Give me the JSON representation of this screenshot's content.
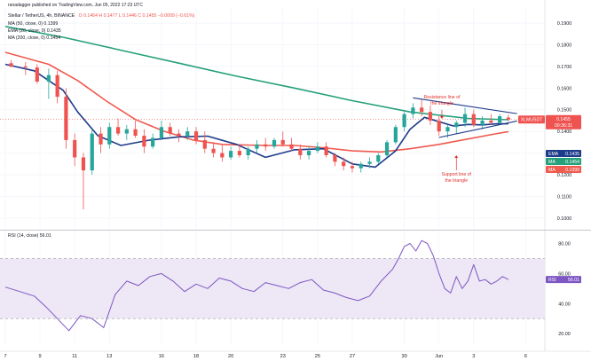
{
  "header": {
    "publisher": "ranadagger published on TradingView.com, Jun 05, 2022 17:23 UTC",
    "symbol_line": "Stellar / TetherUS, 4h, BINANCE",
    "ohlc": "O 0.1464 H 0.1477 L 0.1446 C 0.1455 −0.0009 (−0.61%)",
    "ema50": "MA (50, close, 0) 0.1399",
    "ema20": "EMA (20, close, 0) 0.1435",
    "ma200": "MA (200, close, 0) 0.1454",
    "rsi_legend": "RSI (14, close) 56.01"
  },
  "colors": {
    "up": "#26a69a",
    "down": "#ef5350",
    "ma200": "#26a07a",
    "ema20": "#1e3a8a",
    "ma50": "#f05a4f",
    "rsi": "#7e57c2",
    "rsi_band": "#ede7f6",
    "annotation": "#e0302b",
    "trendline": "#1e3a8a",
    "price_tag": "#ef5350"
  },
  "price_axis": {
    "ticks": [
      "0.1900",
      "0.1800",
      "0.1700",
      "0.1600",
      "0.1500",
      "0.1400",
      "0.1300",
      "0.1200",
      "0.1100",
      "0.1000"
    ]
  },
  "rsi_axis": {
    "ticks": [
      "80.00",
      "60.00",
      "40.00",
      "20.00"
    ]
  },
  "tags": {
    "symbol": "XLMUSDT",
    "price": "0.1455",
    "timer": "00:36:31",
    "ema20": "0.1435",
    "ma200": "0.1454",
    "ma50": "0.1399",
    "ema20_label": "EMA",
    "ma200_label": "MA",
    "ma50_label": "MA",
    "rsi_label": "RSI",
    "rsi_value": "56.01"
  },
  "annotations": {
    "resistance_1": "Resistance line of",
    "resistance_2": "the triangle",
    "support_1": "Support line of",
    "support_2": "the triangle"
  },
  "chart_data": {
    "type": "line",
    "title": "Stellar / TetherUS, 4h, BINANCE",
    "x_ticks": [
      "7",
      "9",
      "11",
      "13",
      "16",
      "18",
      "20",
      "23",
      "25",
      "27",
      "30",
      "Jun",
      "3",
      "6"
    ],
    "x_tick_candles": [
      0,
      12,
      24,
      36,
      54,
      66,
      78,
      96,
      108,
      120,
      138,
      150,
      162,
      180
    ],
    "ylim": [
      0.095,
      0.197
    ],
    "rsi_ylim": [
      13,
      88
    ],
    "grid": true,
    "series": [
      {
        "name": "MA (200, close, 0)",
        "x": [
          0,
          20,
          40,
          60,
          80,
          100,
          120,
          140,
          160,
          174
        ],
        "y": [
          0.1885,
          0.1835,
          0.1775,
          0.1715,
          0.1655,
          0.16,
          0.1542,
          0.149,
          0.146,
          0.1454
        ]
      },
      {
        "name": "EMA (20, close, 0)",
        "x": [
          0,
          10,
          20,
          25,
          32,
          40,
          50,
          60,
          70,
          80,
          90,
          100,
          110,
          120,
          128,
          135,
          140,
          145,
          150,
          155,
          160,
          165,
          170,
          174
        ],
        "y": [
          0.171,
          0.168,
          0.159,
          0.149,
          0.138,
          0.1335,
          0.136,
          0.1375,
          0.1378,
          0.134,
          0.128,
          0.1315,
          0.132,
          0.125,
          0.1235,
          0.131,
          0.141,
          0.1465,
          0.1445,
          0.1425,
          0.1432,
          0.143,
          0.1435,
          0.1435
        ]
      },
      {
        "name": "MA (50, close, 0)",
        "x": [
          0,
          15,
          25,
          35,
          45,
          55,
          65,
          75,
          90,
          100,
          110,
          120,
          130,
          140,
          150,
          160,
          170,
          174
        ],
        "y": [
          0.1765,
          0.171,
          0.1635,
          0.154,
          0.1455,
          0.14,
          0.136,
          0.134,
          0.1335,
          0.1335,
          0.1325,
          0.131,
          0.1305,
          0.132,
          0.134,
          0.1365,
          0.139,
          0.1399
        ]
      },
      {
        "name": "RSI (14, close)",
        "x": [
          0,
          5,
          10,
          14,
          18,
          22,
          26,
          30,
          34,
          38,
          42,
          46,
          50,
          54,
          58,
          62,
          66,
          70,
          74,
          78,
          82,
          86,
          90,
          94,
          98,
          102,
          106,
          110,
          114,
          118,
          122,
          126,
          130,
          134,
          136,
          138,
          140,
          142,
          144,
          146,
          148,
          150,
          152,
          154,
          156,
          158,
          160,
          162,
          164,
          166,
          168,
          170,
          172,
          174
        ],
        "y": [
          51,
          48,
          45,
          38,
          30,
          22,
          32,
          30,
          24,
          46,
          55,
          52,
          58,
          60,
          55,
          48,
          53,
          50,
          57,
          55,
          50,
          48,
          54,
          52,
          50,
          54,
          56,
          49,
          47,
          44,
          42,
          45,
          55,
          63,
          70,
          78,
          80,
          75,
          82,
          80,
          72,
          60,
          50,
          47,
          58,
          50,
          55,
          66,
          55,
          56,
          53,
          55,
          58,
          56.01
        ]
      }
    ],
    "candles": [
      {
        "t": 2,
        "o": 0.1715,
        "h": 0.173,
        "l": 0.1695,
        "c": 0.17
      },
      {
        "t": 7,
        "o": 0.17,
        "h": 0.172,
        "l": 0.166,
        "c": 0.1695
      },
      {
        "t": 11,
        "o": 0.1695,
        "h": 0.171,
        "l": 0.162,
        "c": 0.163
      },
      {
        "t": 15,
        "o": 0.163,
        "h": 0.169,
        "l": 0.155,
        "c": 0.166
      },
      {
        "t": 18,
        "o": 0.166,
        "h": 0.168,
        "l": 0.153,
        "c": 0.156
      },
      {
        "t": 21,
        "o": 0.156,
        "h": 0.16,
        "l": 0.132,
        "c": 0.136
      },
      {
        "t": 24,
        "o": 0.136,
        "h": 0.139,
        "l": 0.124,
        "c": 0.128
      },
      {
        "t": 27,
        "o": 0.128,
        "h": 0.13,
        "l": 0.104,
        "c": 0.122
      },
      {
        "t": 30,
        "o": 0.122,
        "h": 0.141,
        "l": 0.12,
        "c": 0.139
      },
      {
        "t": 33,
        "o": 0.139,
        "h": 0.142,
        "l": 0.13,
        "c": 0.134
      },
      {
        "t": 36,
        "o": 0.134,
        "h": 0.144,
        "l": 0.132,
        "c": 0.142
      },
      {
        "t": 39,
        "o": 0.142,
        "h": 0.146,
        "l": 0.138,
        "c": 0.139
      },
      {
        "t": 42,
        "o": 0.139,
        "h": 0.143,
        "l": 0.136,
        "c": 0.141
      },
      {
        "t": 45,
        "o": 0.141,
        "h": 0.145,
        "l": 0.137,
        "c": 0.138
      },
      {
        "t": 48,
        "o": 0.138,
        "h": 0.141,
        "l": 0.13,
        "c": 0.133
      },
      {
        "t": 51,
        "o": 0.133,
        "h": 0.139,
        "l": 0.132,
        "c": 0.137
      },
      {
        "t": 54,
        "o": 0.137,
        "h": 0.145,
        "l": 0.136,
        "c": 0.142
      },
      {
        "t": 57,
        "o": 0.142,
        "h": 0.144,
        "l": 0.138,
        "c": 0.139
      },
      {
        "t": 60,
        "o": 0.139,
        "h": 0.141,
        "l": 0.135,
        "c": 0.138
      },
      {
        "t": 63,
        "o": 0.138,
        "h": 0.142,
        "l": 0.136,
        "c": 0.14
      },
      {
        "t": 66,
        "o": 0.14,
        "h": 0.142,
        "l": 0.134,
        "c": 0.136
      },
      {
        "t": 69,
        "o": 0.136,
        "h": 0.14,
        "l": 0.13,
        "c": 0.132
      },
      {
        "t": 72,
        "o": 0.132,
        "h": 0.135,
        "l": 0.128,
        "c": 0.13
      },
      {
        "t": 75,
        "o": 0.13,
        "h": 0.134,
        "l": 0.126,
        "c": 0.128
      },
      {
        "t": 78,
        "o": 0.128,
        "h": 0.133,
        "l": 0.127,
        "c": 0.131
      },
      {
        "t": 81,
        "o": 0.131,
        "h": 0.134,
        "l": 0.128,
        "c": 0.129
      },
      {
        "t": 84,
        "o": 0.129,
        "h": 0.133,
        "l": 0.127,
        "c": 0.132
      },
      {
        "t": 87,
        "o": 0.132,
        "h": 0.136,
        "l": 0.13,
        "c": 0.134
      },
      {
        "t": 90,
        "o": 0.134,
        "h": 0.137,
        "l": 0.131,
        "c": 0.133
      },
      {
        "t": 93,
        "o": 0.133,
        "h": 0.137,
        "l": 0.132,
        "c": 0.136
      },
      {
        "t": 96,
        "o": 0.136,
        "h": 0.14,
        "l": 0.133,
        "c": 0.134
      },
      {
        "t": 99,
        "o": 0.134,
        "h": 0.137,
        "l": 0.131,
        "c": 0.132
      },
      {
        "t": 102,
        "o": 0.132,
        "h": 0.134,
        "l": 0.127,
        "c": 0.129
      },
      {
        "t": 105,
        "o": 0.129,
        "h": 0.133,
        "l": 0.127,
        "c": 0.131
      },
      {
        "t": 108,
        "o": 0.131,
        "h": 0.135,
        "l": 0.13,
        "c": 0.133
      },
      {
        "t": 111,
        "o": 0.133,
        "h": 0.135,
        "l": 0.128,
        "c": 0.129
      },
      {
        "t": 114,
        "o": 0.129,
        "h": 0.13,
        "l": 0.124,
        "c": 0.126
      },
      {
        "t": 117,
        "o": 0.126,
        "h": 0.128,
        "l": 0.122,
        "c": 0.124
      },
      {
        "t": 120,
        "o": 0.124,
        "h": 0.126,
        "l": 0.121,
        "c": 0.123
      },
      {
        "t": 123,
        "o": 0.123,
        "h": 0.126,
        "l": 0.121,
        "c": 0.125
      },
      {
        "t": 126,
        "o": 0.125,
        "h": 0.128,
        "l": 0.123,
        "c": 0.126
      },
      {
        "t": 129,
        "o": 0.126,
        "h": 0.13,
        "l": 0.125,
        "c": 0.129
      },
      {
        "t": 132,
        "o": 0.129,
        "h": 0.136,
        "l": 0.128,
        "c": 0.135
      },
      {
        "t": 135,
        "o": 0.135,
        "h": 0.143,
        "l": 0.134,
        "c": 0.142
      },
      {
        "t": 138,
        "o": 0.142,
        "h": 0.149,
        "l": 0.14,
        "c": 0.148
      },
      {
        "t": 141,
        "o": 0.148,
        "h": 0.153,
        "l": 0.146,
        "c": 0.151
      },
      {
        "t": 144,
        "o": 0.151,
        "h": 0.155,
        "l": 0.147,
        "c": 0.149
      },
      {
        "t": 147,
        "o": 0.149,
        "h": 0.152,
        "l": 0.143,
        "c": 0.145
      },
      {
        "t": 150,
        "o": 0.145,
        "h": 0.147,
        "l": 0.138,
        "c": 0.14
      },
      {
        "t": 153,
        "o": 0.14,
        "h": 0.143,
        "l": 0.137,
        "c": 0.142
      },
      {
        "t": 156,
        "o": 0.142,
        "h": 0.145,
        "l": 0.139,
        "c": 0.144
      },
      {
        "t": 159,
        "o": 0.144,
        "h": 0.151,
        "l": 0.142,
        "c": 0.148
      },
      {
        "t": 162,
        "o": 0.148,
        "h": 0.15,
        "l": 0.142,
        "c": 0.143
      },
      {
        "t": 165,
        "o": 0.143,
        "h": 0.147,
        "l": 0.141,
        "c": 0.145
      },
      {
        "t": 168,
        "o": 0.145,
        "h": 0.148,
        "l": 0.143,
        "c": 0.144
      },
      {
        "t": 171,
        "o": 0.144,
        "h": 0.148,
        "l": 0.143,
        "c": 0.147
      },
      {
        "t": 174,
        "o": 0.1464,
        "h": 0.1477,
        "l": 0.1446,
        "c": 0.1455
      }
    ]
  }
}
